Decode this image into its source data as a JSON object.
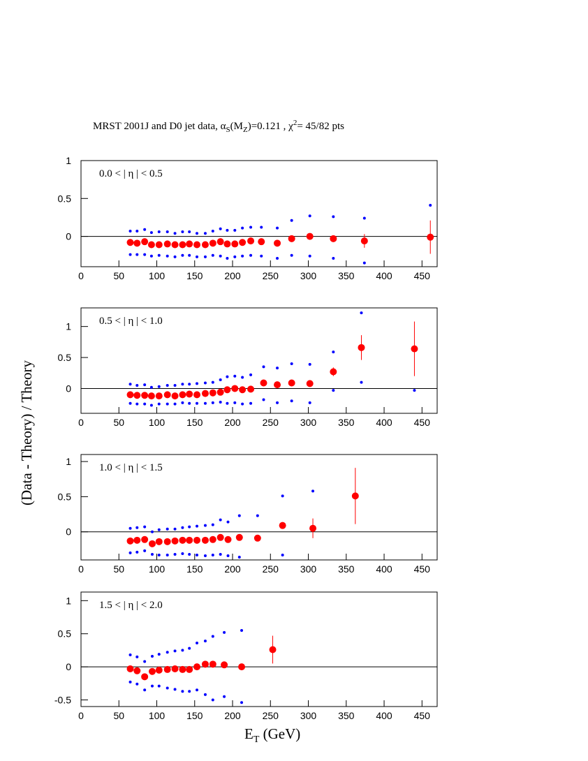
{
  "title_parts": [
    "MRST 2001J and D0 jet data, α",
    "S",
    "(M",
    "Z",
    ")=0.121 , χ",
    "2",
    "= 45/82 pts"
  ],
  "y_label": "(Data - Theory) / Theory",
  "x_label_parts": [
    "E",
    "T",
    " (GeV)"
  ],
  "chart_data": [
    {
      "type": "scatter",
      "label": "0.0 < | η  | < 0.5",
      "color": "#ff0000",
      "band_color": "#0000ff",
      "x": [
        65,
        74,
        84,
        93,
        103,
        114,
        124,
        134,
        143,
        153,
        164,
        174,
        184,
        193,
        203,
        213,
        224,
        238,
        259,
        278,
        302,
        333,
        374,
        461
      ],
      "values": [
        -0.08,
        -0.09,
        -0.07,
        -0.11,
        -0.11,
        -0.1,
        -0.11,
        -0.11,
        -0.1,
        -0.11,
        -0.11,
        -0.09,
        -0.07,
        -0.1,
        -0.1,
        -0.08,
        -0.06,
        -0.07,
        -0.09,
        -0.03,
        0.0,
        -0.03,
        -0.06,
        -0.01
      ],
      "errors": [
        0.01,
        0.01,
        0.01,
        0.01,
        0.01,
        0.01,
        0.01,
        0.01,
        0.01,
        0.01,
        0.01,
        0.01,
        0.01,
        0.01,
        0.01,
        0.01,
        0.01,
        0.01,
        0.01,
        0.02,
        0.02,
        0.04,
        0.09,
        0.22
      ],
      "upper": [
        0.07,
        0.07,
        0.09,
        0.05,
        0.06,
        0.06,
        0.04,
        0.06,
        0.06,
        0.04,
        0.04,
        0.07,
        0.1,
        0.08,
        0.08,
        0.11,
        0.12,
        0.12,
        0.11,
        0.21,
        0.27,
        0.26,
        0.24,
        0.41
      ],
      "lower": [
        -0.24,
        -0.24,
        -0.24,
        -0.26,
        -0.25,
        -0.26,
        -0.27,
        -0.25,
        -0.25,
        -0.27,
        -0.27,
        -0.25,
        -0.26,
        -0.29,
        -0.27,
        -0.26,
        -0.25,
        -0.26,
        -0.29,
        -0.25,
        -0.26,
        -0.29,
        -0.35,
        null
      ],
      "xlim": [
        0,
        470
      ],
      "ylim": [
        -0.4,
        1.0
      ],
      "xticks": [
        0,
        50,
        100,
        150,
        200,
        250,
        300,
        350,
        400,
        450
      ],
      "yticks": [
        0,
        0.5,
        1
      ]
    },
    {
      "type": "scatter",
      "label": "0.5 < | η | < 1.0",
      "color": "#ff0000",
      "band_color": "#0000ff",
      "x": [
        65,
        74,
        84,
        93,
        103,
        114,
        124,
        134,
        143,
        153,
        164,
        174,
        184,
        193,
        203,
        213,
        224,
        241,
        259,
        278,
        302,
        333,
        370,
        440
      ],
      "values": [
        -0.1,
        -0.11,
        -0.11,
        -0.12,
        -0.12,
        -0.1,
        -0.12,
        -0.1,
        -0.09,
        -0.1,
        -0.08,
        -0.07,
        -0.06,
        -0.02,
        0.0,
        -0.02,
        -0.01,
        0.09,
        0.06,
        0.09,
        0.08,
        0.27,
        0.66,
        0.64
      ],
      "errors": [
        0.01,
        0.01,
        0.01,
        0.01,
        0.01,
        0.01,
        0.01,
        0.01,
        0.01,
        0.01,
        0.01,
        0.01,
        0.01,
        0.01,
        0.01,
        0.01,
        0.01,
        0.01,
        0.01,
        0.02,
        0.02,
        0.07,
        0.2,
        0.44
      ],
      "upper": [
        0.07,
        0.05,
        0.06,
        0.02,
        0.03,
        0.05,
        0.05,
        0.07,
        0.07,
        0.08,
        0.09,
        0.1,
        0.14,
        0.19,
        0.2,
        0.18,
        0.22,
        0.35,
        0.33,
        0.4,
        0.39,
        0.59,
        1.22,
        null
      ],
      "lower": [
        -0.24,
        -0.25,
        -0.25,
        -0.27,
        -0.25,
        -0.25,
        -0.25,
        -0.23,
        -0.24,
        -0.24,
        -0.24,
        -0.23,
        -0.22,
        -0.24,
        -0.23,
        -0.25,
        -0.24,
        -0.18,
        -0.23,
        -0.2,
        -0.23,
        -0.03,
        0.1,
        -0.03
      ],
      "xlim": [
        0,
        470
      ],
      "ylim": [
        -0.4,
        1.3
      ],
      "xticks": [
        0,
        50,
        100,
        150,
        200,
        250,
        300,
        350,
        400,
        450
      ],
      "yticks": [
        0,
        0.5,
        1
      ]
    },
    {
      "type": "scatter",
      "label": "1.0 < | η | < 1.5",
      "color": "#ff0000",
      "band_color": "#0000ff",
      "x": [
        65,
        74,
        84,
        94,
        103,
        114,
        124,
        134,
        143,
        153,
        164,
        174,
        184,
        194,
        209,
        233,
        266,
        306,
        362
      ],
      "values": [
        -0.13,
        -0.12,
        -0.11,
        -0.17,
        -0.14,
        -0.14,
        -0.13,
        -0.12,
        -0.12,
        -0.12,
        -0.12,
        -0.11,
        -0.08,
        -0.11,
        -0.08,
        -0.09,
        0.09,
        0.05,
        0.51
      ],
      "errors": [
        0.01,
        0.01,
        0.01,
        0.01,
        0.01,
        0.01,
        0.01,
        0.01,
        0.01,
        0.01,
        0.01,
        0.01,
        0.01,
        0.01,
        0.01,
        0.02,
        0.04,
        0.14,
        0.4
      ],
      "upper": [
        0.05,
        0.06,
        0.07,
        0.0,
        0.03,
        0.04,
        0.04,
        0.06,
        0.07,
        0.08,
        0.09,
        0.1,
        0.17,
        0.14,
        0.23,
        0.23,
        0.51,
        0.58,
        null
      ],
      "lower": [
        -0.3,
        -0.29,
        -0.27,
        -0.32,
        -0.33,
        -0.33,
        -0.32,
        -0.31,
        -0.32,
        -0.33,
        -0.34,
        -0.33,
        -0.32,
        -0.34,
        -0.36,
        null,
        -0.33,
        null,
        null
      ],
      "xlim": [
        0,
        470
      ],
      "ylim": [
        -0.4,
        1.1
      ],
      "xticks": [
        0,
        50,
        100,
        150,
        200,
        250,
        300,
        350,
        400,
        450
      ],
      "yticks": [
        0,
        0.5,
        1
      ]
    },
    {
      "type": "scatter",
      "label": "1.5 < | η | < 2.0",
      "color": "#ff0000",
      "band_color": "#0000ff",
      "x": [
        65,
        74,
        84,
        94,
        103,
        114,
        124,
        134,
        143,
        153,
        164,
        174,
        189,
        212,
        253
      ],
      "values": [
        -0.03,
        -0.06,
        -0.15,
        -0.07,
        -0.05,
        -0.04,
        -0.03,
        -0.04,
        -0.04,
        0.0,
        0.04,
        0.04,
        0.03,
        0.0,
        0.26
      ],
      "errors": [
        0.02,
        0.02,
        0.02,
        0.02,
        0.02,
        0.02,
        0.02,
        0.02,
        0.02,
        0.02,
        0.02,
        0.02,
        0.02,
        0.03,
        0.21
      ],
      "upper": [
        0.18,
        0.15,
        0.08,
        0.16,
        0.19,
        0.22,
        0.24,
        0.25,
        0.28,
        0.36,
        0.39,
        0.46,
        0.52,
        0.55,
        null
      ],
      "lower": [
        -0.23,
        -0.26,
        -0.35,
        -0.29,
        -0.29,
        -0.32,
        -0.34,
        -0.37,
        -0.37,
        -0.35,
        -0.42,
        -0.5,
        -0.45,
        -0.54,
        null
      ],
      "xlim": [
        0,
        470
      ],
      "ylim": [
        -0.6,
        1.13
      ],
      "xticks": [
        0,
        50,
        100,
        150,
        200,
        250,
        300,
        350,
        400,
        450
      ],
      "yticks": [
        -0.5,
        0,
        0.5,
        1
      ]
    }
  ]
}
